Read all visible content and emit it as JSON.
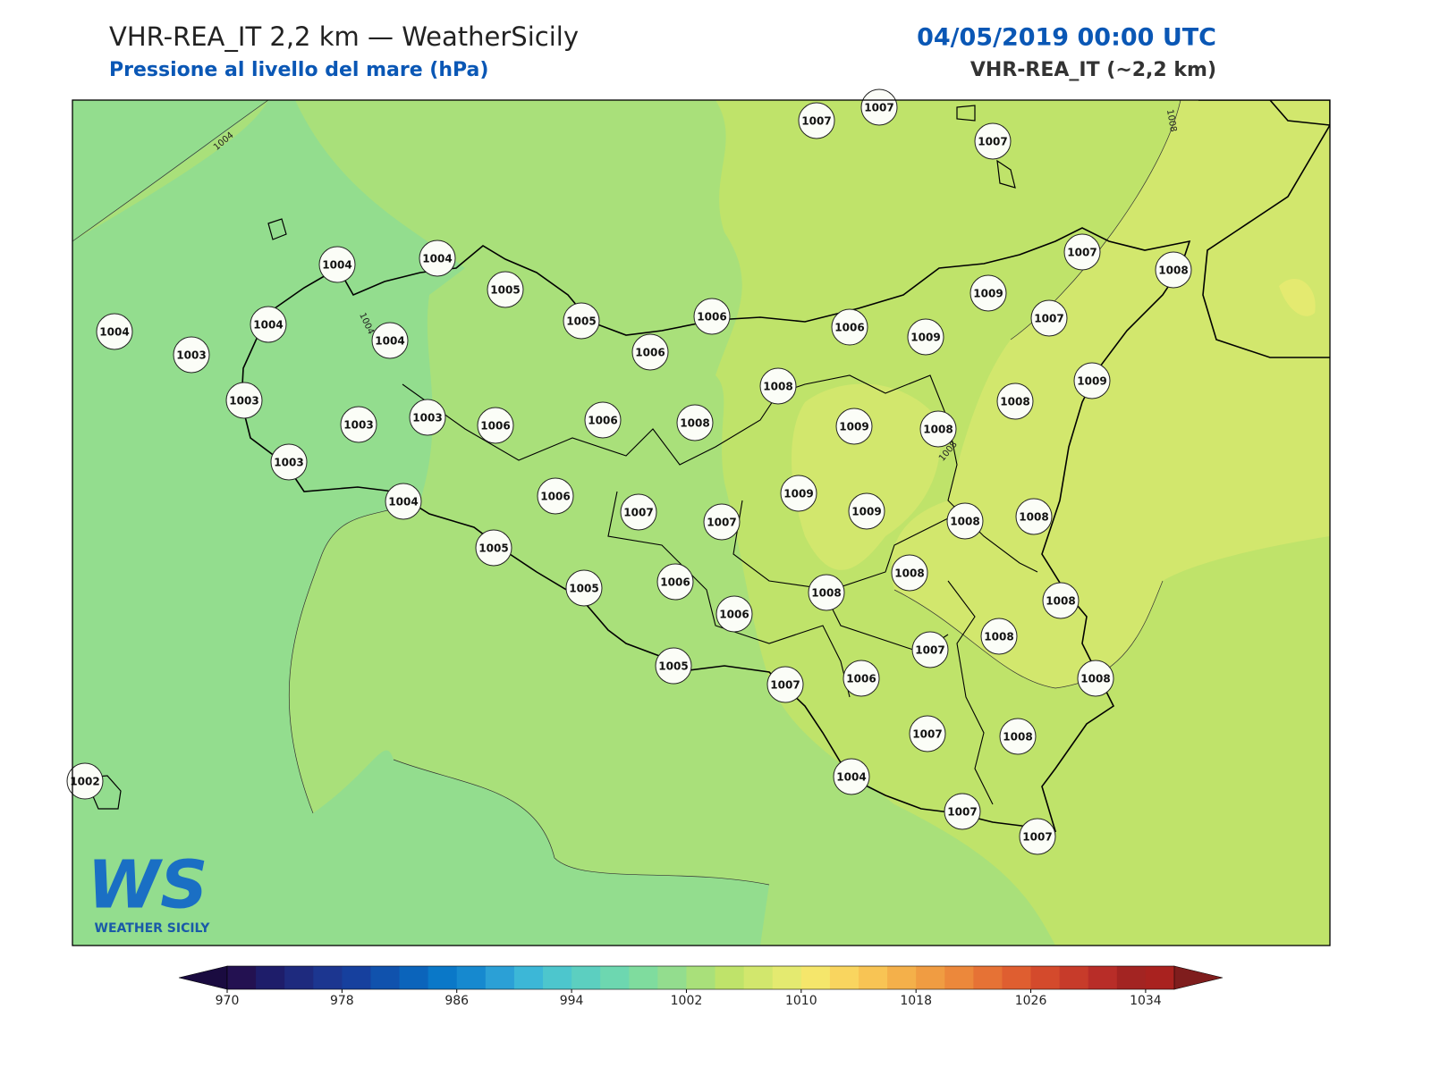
{
  "header": {
    "title": "VHR-REA_IT 2,2 km — WeatherSicily",
    "subtitle": "Pressione al livello del mare (hPa)",
    "datetime": "04/05/2019 00:00 UTC",
    "model": "VHR-REA_IT (~2,2 km)"
  },
  "stations": [
    1007,
    1007,
    1007,
    1004,
    1004,
    1005,
    1007,
    1008,
    1004,
    1004,
    1004,
    1005,
    1006,
    1009,
    1007,
    1003,
    1006,
    1006,
    1009,
    1003,
    1008,
    1009,
    1003,
    1003,
    1006,
    1006,
    1008,
    1009,
    1008,
    1008,
    1003,
    1006,
    1009,
    1004,
    1007,
    1007,
    1009,
    1008,
    1008,
    1005,
    1005,
    1006,
    1008,
    1008,
    1006,
    1008,
    1007,
    1008,
    1005,
    1007,
    1006,
    1008,
    1007,
    1008,
    1002,
    1004,
    1007,
    1007
  ],
  "contour_labels": [
    1004,
    1004,
    1008,
    1008
  ],
  "colorbar": {
    "lim": [
      970,
      1036
    ],
    "ticks": [
      970,
      978,
      986,
      994,
      1002,
      1010,
      1018,
      1026,
      1034
    ],
    "colors": [
      "#231151",
      "#1e1d6a",
      "#1e2a7e",
      "#1c3690",
      "#16409e",
      "#1052ad",
      "#0b64bb",
      "#0a78c8",
      "#1689cf",
      "#2ba0d6",
      "#3cb7d7",
      "#4dc6cd",
      "#5ccfc0",
      "#6dd7b0",
      "#7fdc9e",
      "#93dd8e",
      "#a9e07a",
      "#bfe36a",
      "#d2e76d",
      "#e4ea70",
      "#f5e66b",
      "#f9d55f",
      "#f8c454",
      "#f4b04a",
      "#f09c42",
      "#ec883b",
      "#e67235",
      "#df5e30",
      "#d44a2c",
      "#c73b2a",
      "#b82d28",
      "#a32422",
      "#a9221f"
    ]
  },
  "logo": {
    "mark": "WS",
    "text": "WEATHER SICILY"
  }
}
